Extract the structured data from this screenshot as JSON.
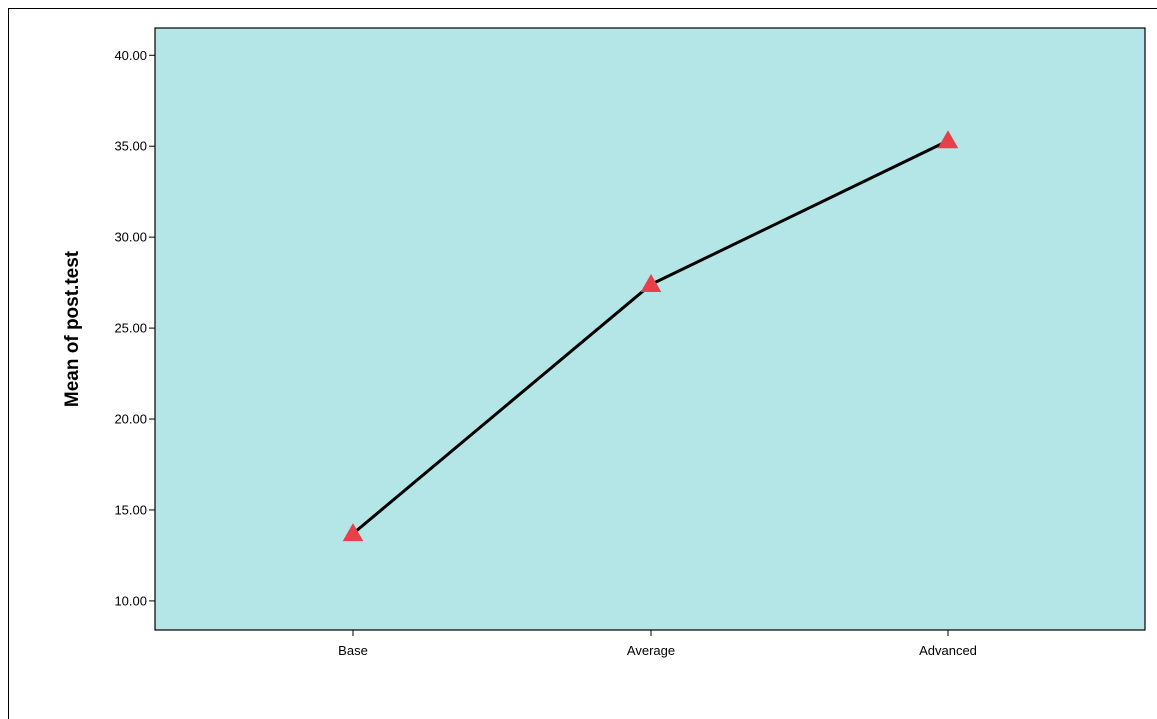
{
  "chart_data": {
    "type": "line",
    "categories": [
      "Base",
      "Average",
      "Advanced"
    ],
    "values": [
      13.7,
      27.4,
      35.3
    ],
    "ylabel": "Mean of post.test",
    "xlabel": "",
    "ylim": [
      8.4,
      41.5
    ],
    "yticks": [
      "10.00",
      "15.00",
      "20.00",
      "25.00",
      "30.00",
      "35.00",
      "40.00"
    ],
    "marker": "triangle",
    "colors": {
      "plot_background": "#b5e6e7",
      "line": "#000000",
      "marker": "#e8404a"
    },
    "grid": false,
    "legend": "none"
  }
}
